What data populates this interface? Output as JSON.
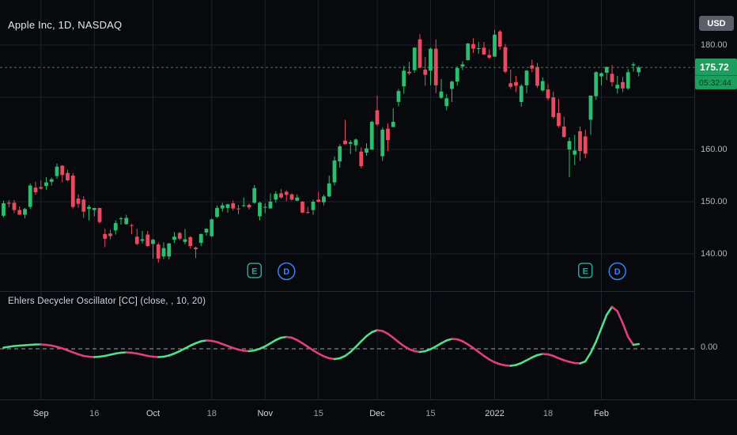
{
  "header": {
    "symbol_title": "Apple Inc, 1D, NASDAQ"
  },
  "indicator": {
    "label": "Ehlers Decycler Oscillator [CC] (close, , 10, 20)"
  },
  "price_axis": {
    "currency_label": "USD",
    "labels": [
      {
        "value": 180,
        "text": "180.00"
      },
      {
        "value": 160,
        "text": "160.00"
      },
      {
        "value": 150,
        "text": "150.00"
      },
      {
        "value": 140,
        "text": "140.00"
      }
    ],
    "last_price_text": "175.72",
    "countdown_text": "05:32:44",
    "oscillator_zero_text": "0.00"
  },
  "time_axis": {
    "ticks": [
      {
        "index": 7,
        "label": "Sep",
        "major": true
      },
      {
        "index": 17,
        "label": "16",
        "major": false
      },
      {
        "index": 28,
        "label": "Oct",
        "major": true
      },
      {
        "index": 39,
        "label": "18",
        "major": false
      },
      {
        "index": 49,
        "label": "Nov",
        "major": true
      },
      {
        "index": 59,
        "label": "15",
        "major": false
      },
      {
        "index": 70,
        "label": "Dec",
        "major": true
      },
      {
        "index": 80,
        "label": "15",
        "major": false
      },
      {
        "index": 92,
        "label": "2022",
        "major": true
      },
      {
        "index": 102,
        "label": "18",
        "major": false
      },
      {
        "index": 112,
        "label": "Feb",
        "major": true
      }
    ]
  },
  "markers": [
    {
      "type": "earnings",
      "label": "E",
      "index": 47
    },
    {
      "type": "dividend",
      "label": "D",
      "index": 53
    },
    {
      "type": "earnings",
      "label": "E",
      "index": 109
    },
    {
      "type": "dividend",
      "label": "D",
      "index": 115
    }
  ],
  "colors": {
    "background": "#07090c",
    "grid": "#1e222c",
    "axis_text": "#b2b5be",
    "up": "#2ebd70",
    "down": "#e84a5f",
    "osc_up": "#53de8d",
    "osc_down": "#e0407a",
    "badge_green": "#1d9e5e",
    "earnings_marker": "#26a69a",
    "dividend_marker": "#3b82f6",
    "zero_line": "#b8bcc6"
  },
  "chart_data": [
    {
      "type": "candlestick",
      "title": "Apple Inc, 1D, NASDAQ",
      "unit": "USD",
      "last_price": 175.72,
      "y_gridlines": [
        180,
        170,
        160,
        150,
        140
      ],
      "y_range_hint": [
        134,
        189
      ],
      "ohlc": [
        [
          147.3,
          150.2,
          147.0,
          149.7
        ],
        [
          149.8,
          150.3,
          148.9,
          149.6
        ],
        [
          149.8,
          150.3,
          147.8,
          148.4
        ],
        [
          148.4,
          149.1,
          147.5,
          147.5
        ],
        [
          147.5,
          148.8,
          146.8,
          148.6
        ],
        [
          149.0,
          153.5,
          148.6,
          153.1
        ],
        [
          152.7,
          153.8,
          151.3,
          151.8
        ],
        [
          152.8,
          154.1,
          152.3,
          152.5
        ],
        [
          153.0,
          154.7,
          152.3,
          153.7
        ],
        [
          153.8,
          154.6,
          153.1,
          154.3
        ],
        [
          154.9,
          157.3,
          154.4,
          156.7
        ],
        [
          156.9,
          157.0,
          153.7,
          155.1
        ],
        [
          155.5,
          156.1,
          153.9,
          154.1
        ],
        [
          155.0,
          155.5,
          148.7,
          149.0
        ],
        [
          150.6,
          151.4,
          148.8,
          149.6
        ],
        [
          150.4,
          151.1,
          146.9,
          148.1
        ],
        [
          148.6,
          149.4,
          146.4,
          149.0
        ],
        [
          148.4,
          148.8,
          147.2,
          148.8
        ],
        [
          148.8,
          148.8,
          145.8,
          146.1
        ],
        [
          143.8,
          144.8,
          141.3,
          142.9
        ],
        [
          143.9,
          144.6,
          142.8,
          143.4
        ],
        [
          144.5,
          146.4,
          143.7,
          145.9
        ],
        [
          146.7,
          147.1,
          145.6,
          146.8
        ],
        [
          145.7,
          147.5,
          145.6,
          146.9
        ],
        [
          145.5,
          145.8,
          143.8,
          145.4
        ],
        [
          143.3,
          144.8,
          141.7,
          141.9
        ],
        [
          142.5,
          144.4,
          142.0,
          142.8
        ],
        [
          143.7,
          144.4,
          141.3,
          141.5
        ],
        [
          141.9,
          142.9,
          139.1,
          142.7
        ],
        [
          141.8,
          142.2,
          138.3,
          139.1
        ],
        [
          139.5,
          142.2,
          139.0,
          141.1
        ],
        [
          139.5,
          142.1,
          138.9,
          142.0
        ],
        [
          142.7,
          144.2,
          142.1,
          143.3
        ],
        [
          144.0,
          144.2,
          142.6,
          142.9
        ],
        [
          142.3,
          144.8,
          141.8,
          142.8
        ],
        [
          143.2,
          143.4,
          141.0,
          141.5
        ],
        [
          141.2,
          141.4,
          139.2,
          140.9
        ],
        [
          142.1,
          143.9,
          141.5,
          143.8
        ],
        [
          144.1,
          144.9,
          143.5,
          144.8
        ],
        [
          143.4,
          146.8,
          143.2,
          146.6
        ],
        [
          147.1,
          149.2,
          146.9,
          148.8
        ],
        [
          148.7,
          149.8,
          148.1,
          149.3
        ],
        [
          148.8,
          149.6,
          147.9,
          149.5
        ],
        [
          149.7,
          150.2,
          148.3,
          148.7
        ],
        [
          148.7,
          149.4,
          147.6,
          148.6
        ],
        [
          149.3,
          150.8,
          149.0,
          149.3
        ],
        [
          149.4,
          149.7,
          148.5,
          148.9
        ],
        [
          149.8,
          153.2,
          149.6,
          152.6
        ],
        [
          147.2,
          150.0,
          146.4,
          149.8
        ],
        [
          149.0,
          149.7,
          147.8,
          149.0
        ],
        [
          148.7,
          151.6,
          148.7,
          150.0
        ],
        [
          150.4,
          152.0,
          149.8,
          151.5
        ],
        [
          151.6,
          152.4,
          150.6,
          150.8
        ],
        [
          151.9,
          152.2,
          150.1,
          151.3
        ],
        [
          151.4,
          151.6,
          150.2,
          150.4
        ],
        [
          150.2,
          151.4,
          150.1,
          150.8
        ],
        [
          150.0,
          150.1,
          147.8,
          147.9
        ],
        [
          148.0,
          149.0,
          147.7,
          147.9
        ],
        [
          148.4,
          150.4,
          147.5,
          150.0
        ],
        [
          150.4,
          151.9,
          149.8,
          150.0
        ],
        [
          149.9,
          151.3,
          149.3,
          151.0
        ],
        [
          151.0,
          155.0,
          150.9,
          153.5
        ],
        [
          153.7,
          158.7,
          153.1,
          157.9
        ],
        [
          157.7,
          161.0,
          156.5,
          160.6
        ],
        [
          161.7,
          165.7,
          161.0,
          161.0
        ],
        [
          161.1,
          161.8,
          159.1,
          161.4
        ],
        [
          160.8,
          162.1,
          159.6,
          161.9
        ],
        [
          159.6,
          160.4,
          156.4,
          156.8
        ],
        [
          159.4,
          161.2,
          158.8,
          160.2
        ],
        [
          160.0,
          165.5,
          159.9,
          165.3
        ],
        [
          167.5,
          170.3,
          164.5,
          164.8
        ],
        [
          158.7,
          164.2,
          157.8,
          163.8
        ],
        [
          164.0,
          165.0,
          159.7,
          161.8
        ],
        [
          164.3,
          167.9,
          164.3,
          165.3
        ],
        [
          169.1,
          171.6,
          168.3,
          171.2
        ],
        [
          172.1,
          176.0,
          170.7,
          175.1
        ],
        [
          174.9,
          176.8,
          174.3,
          174.6
        ],
        [
          175.2,
          179.6,
          174.7,
          179.5
        ],
        [
          181.1,
          182.1,
          175.5,
          175.7
        ],
        [
          175.3,
          177.7,
          172.2,
          174.3
        ],
        [
          175.1,
          179.5,
          172.3,
          179.3
        ],
        [
          179.3,
          181.1,
          170.8,
          172.3
        ],
        [
          169.9,
          173.5,
          169.7,
          171.1
        ],
        [
          168.3,
          170.6,
          167.5,
          169.8
        ],
        [
          171.6,
          173.2,
          169.1,
          173.0
        ],
        [
          173.0,
          175.9,
          172.2,
          175.6
        ],
        [
          175.9,
          176.9,
          175.2,
          176.3
        ],
        [
          177.1,
          180.4,
          177.1,
          180.3
        ],
        [
          180.2,
          181.3,
          178.5,
          179.3
        ],
        [
          179.3,
          180.6,
          178.3,
          179.4
        ],
        [
          179.5,
          180.6,
          178.1,
          178.2
        ],
        [
          178.1,
          179.2,
          177.3,
          177.6
        ],
        [
          177.8,
          182.9,
          177.7,
          182.0
        ],
        [
          182.6,
          182.9,
          179.1,
          179.7
        ],
        [
          179.6,
          180.2,
          174.6,
          174.9
        ],
        [
          172.7,
          175.3,
          171.6,
          172.0
        ],
        [
          172.9,
          174.1,
          171.0,
          172.2
        ],
        [
          169.1,
          172.5,
          168.2,
          172.2
        ],
        [
          172.3,
          175.2,
          170.8,
          175.1
        ],
        [
          176.1,
          177.2,
          174.8,
          175.5
        ],
        [
          175.8,
          176.6,
          171.8,
          172.2
        ],
        [
          171.3,
          173.8,
          171.1,
          173.1
        ],
        [
          171.5,
          172.5,
          169.4,
          169.8
        ],
        [
          170.0,
          171.1,
          165.9,
          166.2
        ],
        [
          167.0,
          169.7,
          164.2,
          164.5
        ],
        [
          164.4,
          166.3,
          162.3,
          162.4
        ],
        [
          160.0,
          162.3,
          154.7,
          161.6
        ],
        [
          159.0,
          162.8,
          157.0,
          159.8
        ],
        [
          163.5,
          164.4,
          157.8,
          159.7
        ],
        [
          162.5,
          163.8,
          158.3,
          159.2
        ],
        [
          165.7,
          170.4,
          162.8,
          170.3
        ],
        [
          170.2,
          175.0,
          169.5,
          174.8
        ],
        [
          174.0,
          174.8,
          172.3,
          174.6
        ],
        [
          174.7,
          175.9,
          173.3,
          175.8
        ],
        [
          174.5,
          176.2,
          172.1,
          172.9
        ],
        [
          171.7,
          174.1,
          170.7,
          172.4
        ],
        [
          172.9,
          173.9,
          171.0,
          171.7
        ],
        [
          171.7,
          175.4,
          171.4,
          174.8
        ],
        [
          176.1,
          176.7,
          174.9,
          176.3
        ],
        [
          174.8,
          176.0,
          174.0,
          175.72
        ]
      ]
    },
    {
      "type": "line",
      "title": "Ehlers Decycler Oscillator [CC] (close, , 10, 20)",
      "zero_line": 0,
      "legend_position": "top-left",
      "values": [
        0.3,
        0.5,
        0.7,
        0.8,
        0.9,
        1.0,
        1.1,
        1.1,
        1.0,
        0.8,
        0.5,
        0.1,
        -0.4,
        -0.9,
        -1.4,
        -1.8,
        -2.0,
        -2.1,
        -2.0,
        -1.8,
        -1.5,
        -1.2,
        -1.0,
        -0.9,
        -1.0,
        -1.2,
        -1.5,
        -1.8,
        -2.0,
        -2.1,
        -2.0,
        -1.7,
        -1.2,
        -0.6,
        0.1,
        0.8,
        1.4,
        1.9,
        2.1,
        2.0,
        1.7,
        1.2,
        0.7,
        0.2,
        -0.2,
        -0.5,
        -0.6,
        -0.4,
        0.0,
        0.6,
        1.4,
        2.2,
        2.8,
        3.0,
        2.8,
        2.2,
        1.4,
        0.5,
        -0.4,
        -1.2,
        -1.9,
        -2.4,
        -2.6,
        -2.4,
        -1.8,
        -0.8,
        0.5,
        1.9,
        3.2,
        4.2,
        4.7,
        4.5,
        3.8,
        2.8,
        1.7,
        0.7,
        -0.1,
        -0.6,
        -0.8,
        -0.6,
        -0.1,
        0.6,
        1.4,
        2.1,
        2.5,
        2.4,
        1.9,
        1.1,
        0.2,
        -0.8,
        -1.8,
        -2.7,
        -3.4,
        -3.9,
        -4.2,
        -4.3,
        -4.1,
        -3.6,
        -2.9,
        -2.2,
        -1.6,
        -1.3,
        -1.4,
        -1.8,
        -2.4,
        -2.9,
        -3.3,
        -3.6,
        -3.7,
        -3.2,
        -1.0,
        1.8,
        5.2,
        8.6,
        10.6,
        9.5,
        6.5,
        3.0,
        1.0,
        1.2
      ]
    }
  ]
}
